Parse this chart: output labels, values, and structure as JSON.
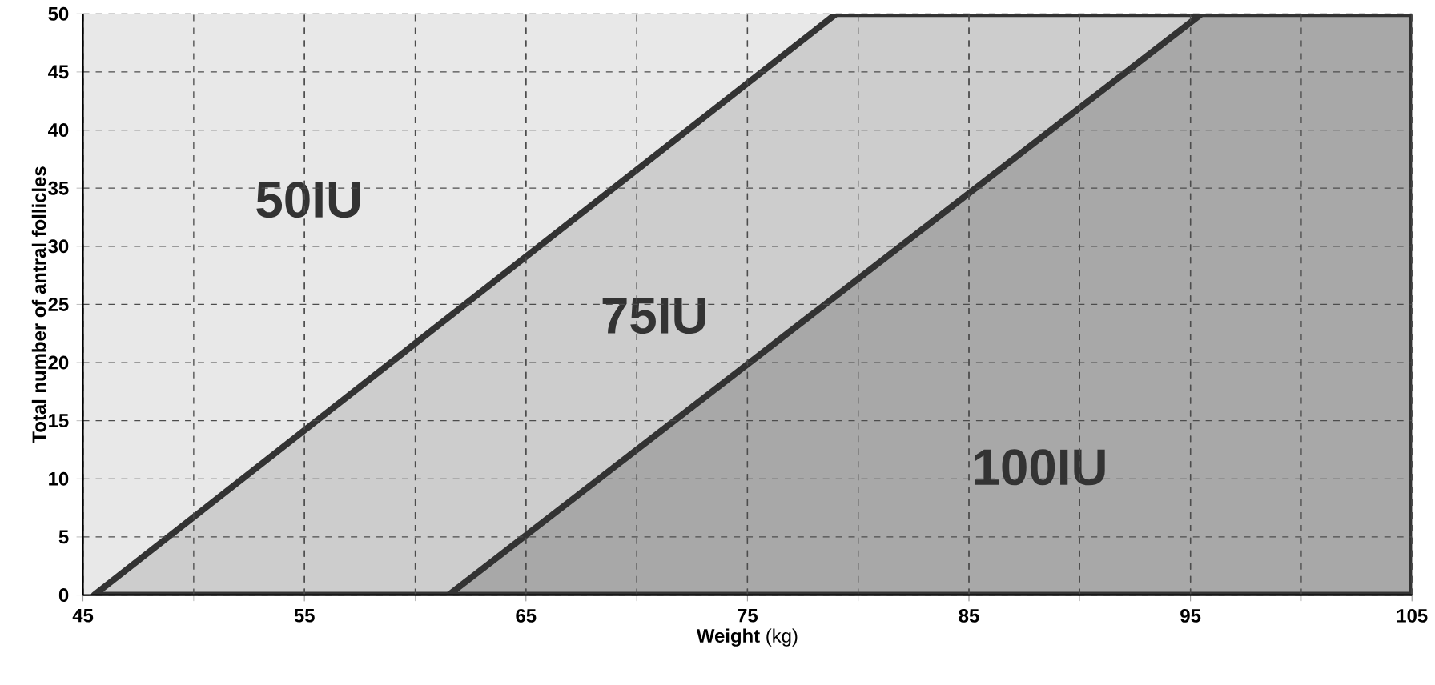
{
  "chart_data": {
    "type": "area",
    "xlabel": "**Weight** (kg)",
    "ylabel": "Total number of antral follicles",
    "xlim": [
      45,
      105
    ],
    "ylim": [
      0,
      50
    ],
    "xticks": [
      45,
      55,
      65,
      75,
      85,
      95,
      105
    ],
    "yticks": [
      0,
      5,
      10,
      15,
      20,
      25,
      30,
      35,
      40,
      45,
      50
    ],
    "grid": true,
    "series": [
      {
        "color": "#cdcdcd",
        "x": [
          45.5,
          79,
          105
        ],
        "values": [
          0,
          50,
          50
        ]
      },
      {
        "color": "#a8a8a8",
        "x": [
          61.5,
          95.5,
          105
        ],
        "values": [
          0,
          50,
          50
        ]
      }
    ],
    "annotations": [
      "50IU",
      "75IU",
      "100IU"
    ]
  }
}
